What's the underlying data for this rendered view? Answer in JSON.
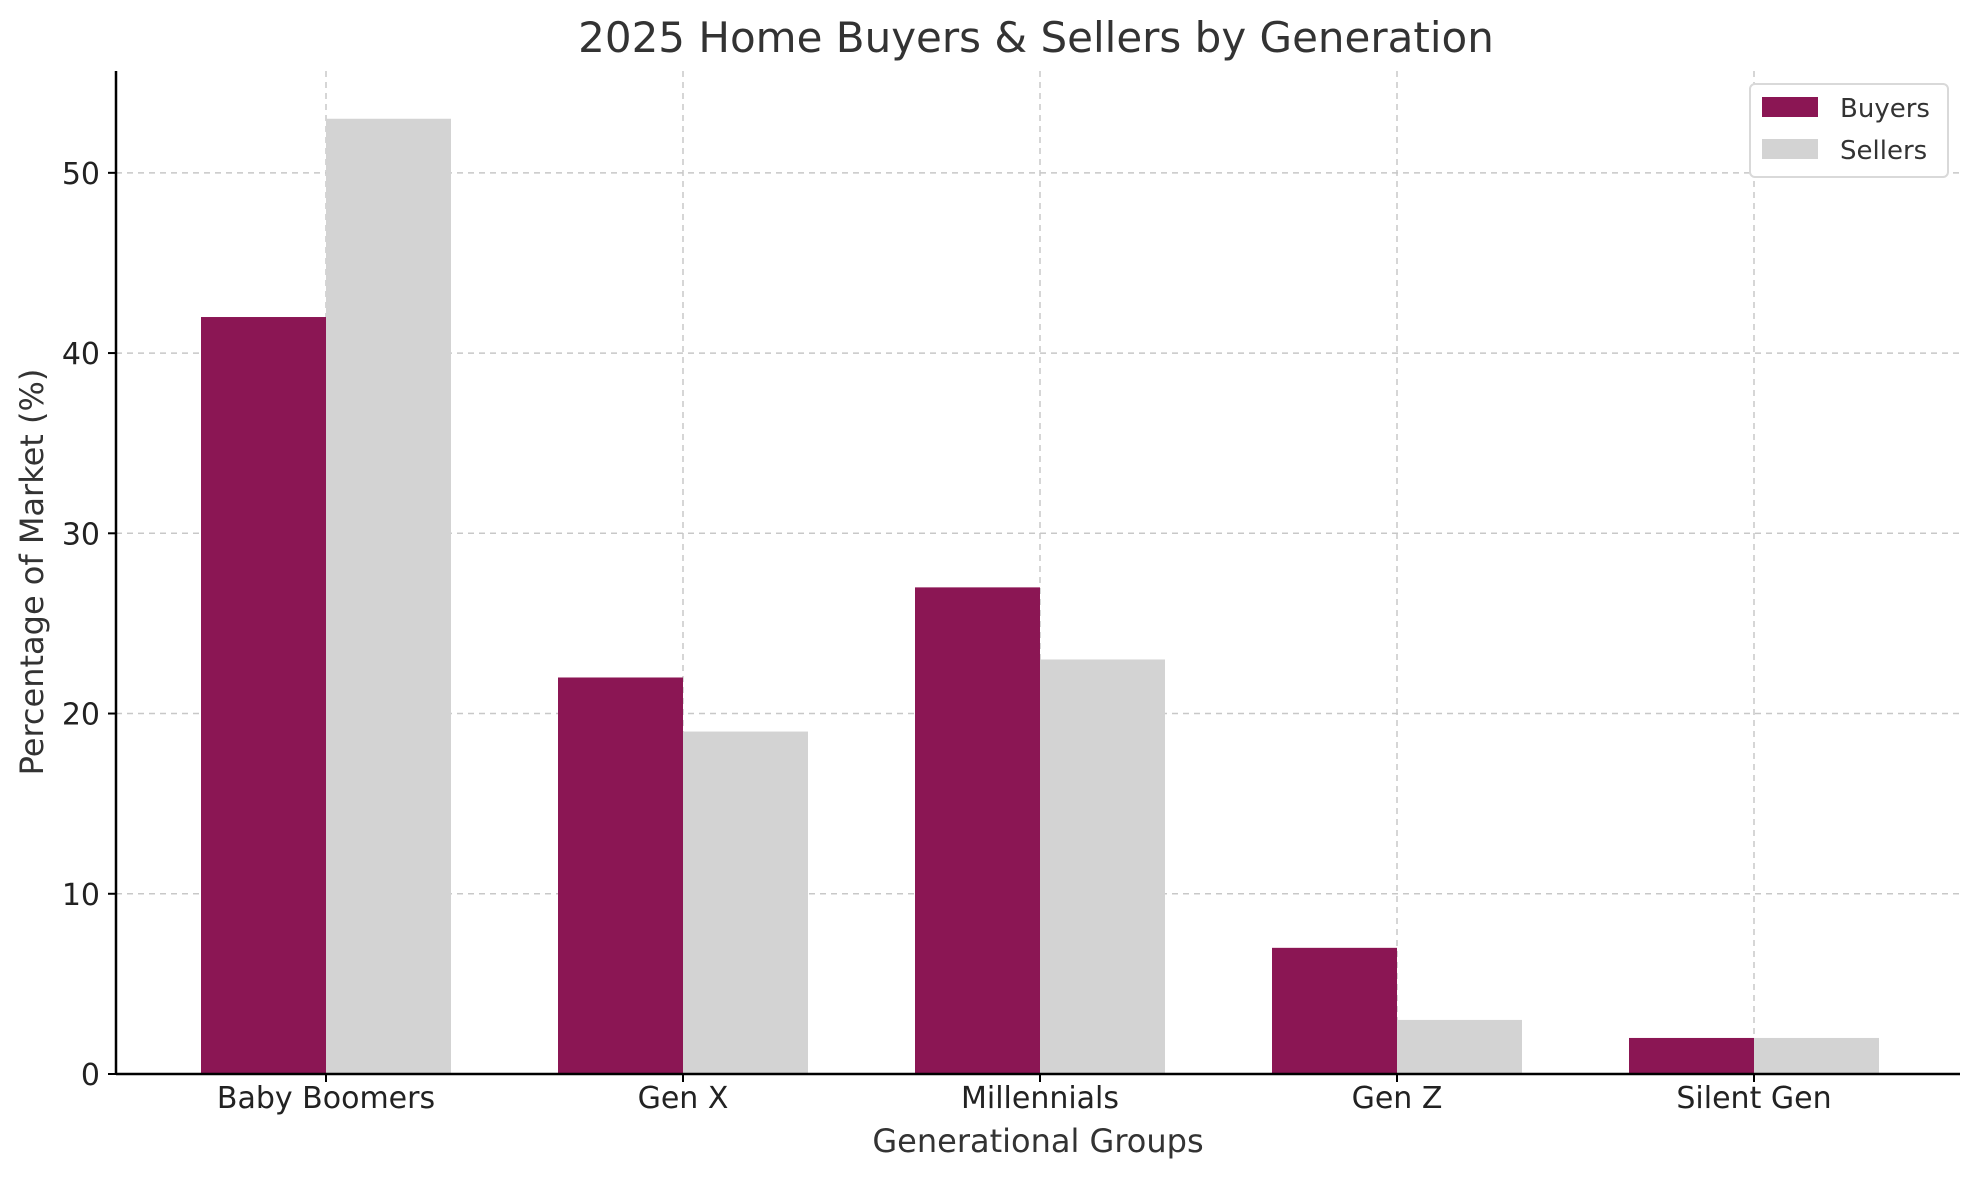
{
  "chart_data": {
    "type": "bar",
    "title": "2025 Home Buyers & Sellers by Generation",
    "xlabel": "Generational Groups",
    "ylabel": "Percentage of Market (%)",
    "categories": [
      "Baby Boomers",
      "Gen X",
      "Millennials",
      "Gen Z",
      "Silent Gen"
    ],
    "series": [
      {
        "name": "Buyers",
        "values": [
          42,
          22,
          27,
          7,
          2
        ],
        "color": "#8B1654"
      },
      {
        "name": "Sellers",
        "values": [
          53,
          19,
          23,
          3,
          2
        ],
        "color": "#D3D3D3"
      }
    ],
    "ylim": [
      0,
      55.65
    ],
    "yticks": [
      0,
      10,
      20,
      30,
      40,
      50
    ],
    "grid": true,
    "legend_position": "top-right"
  }
}
